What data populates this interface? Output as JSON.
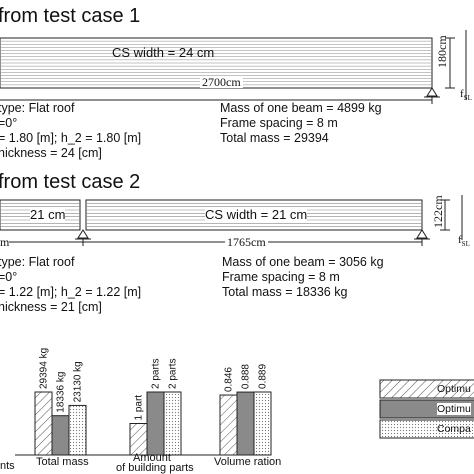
{
  "case1": {
    "title": "from test case 1",
    "cs_width": "CS width = 24 cm",
    "span": "2700cm",
    "height": "180cm",
    "roof_type": "type: Flat roof",
    "alpha": "=0°",
    "h": "= 1.80 [m]; h_2 = 1.80 [m]",
    "thickness": "hickness = 24 [cm]",
    "beam_mass": "Mass of one beam = 4899 kg",
    "frame_spacing": "Frame spacing = 8 m",
    "total_mass": "Total mass = 29394",
    "f_label_top": "f",
    "f_label_sub": "SL"
  },
  "case2": {
    "title": "from test case 2",
    "left_width": "21 cm",
    "cs_width": "CS width = 21 cm",
    "span_left": "m",
    "span": "1765cm",
    "height": "122cm",
    "roof_type": "type: Flat roof",
    "alpha": "=0°",
    "h": "= 1.22 [m]; h_2 = 1.22 [m]",
    "thickness": "hickness = 21 [cm]",
    "beam_mass": "Mass of one beam = 3056 kg",
    "frame_spacing": "Frame spacing = 8 m",
    "total_mass": "Total mass = 18336 kg",
    "f_label_top": "f",
    "f_label_sub": "SL"
  },
  "chart_data": {
    "type": "bar",
    "categories": [
      "Total mass",
      "Amount of building parts",
      "Volume ration"
    ],
    "category_labels": [
      [
        "Total mass"
      ],
      [
        "Amount",
        "of building parts"
      ],
      [
        "Volume ration"
      ]
    ],
    "series": [
      {
        "name": "Optimu",
        "pattern": "hatch",
        "value_labels": [
          "29394 kg",
          "1 part",
          "0.846"
        ],
        "values": [
          29394,
          1,
          0.846
        ]
      },
      {
        "name": "Optimu",
        "pattern": "gray",
        "value_labels": [
          "18336 kg",
          "2 parts",
          "0.888"
        ],
        "values": [
          18336,
          2,
          0.888
        ]
      },
      {
        "name": "Compa",
        "pattern": "dots",
        "value_labels": [
          "23130 kg",
          "2 parts",
          "0.889"
        ],
        "values": [
          23130,
          2,
          0.889
        ]
      }
    ],
    "left_axis_label": "nts",
    "legend_position": "right"
  }
}
